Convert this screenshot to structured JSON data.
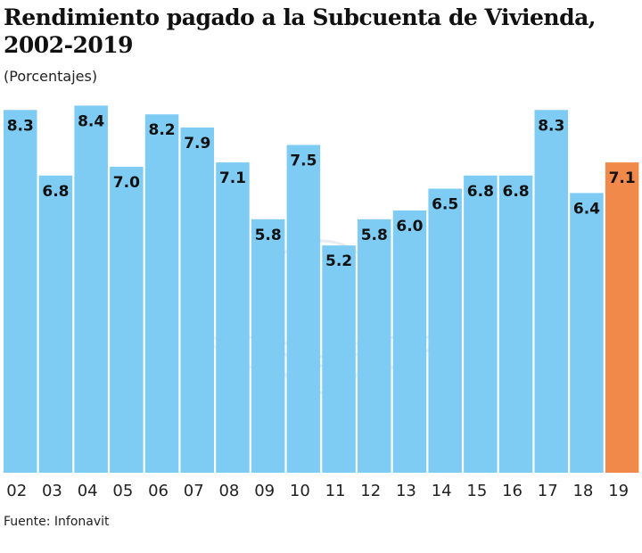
{
  "chart_data": {
    "type": "bar",
    "title": "Rendimiento pagado a la Subcuenta de Vivienda, 2002-2019",
    "subtitle": "(Porcentajes)",
    "categories": [
      "02",
      "03",
      "04",
      "05",
      "06",
      "07",
      "08",
      "09",
      "10",
      "11",
      "12",
      "13",
      "14",
      "15",
      "16",
      "17",
      "18",
      "19"
    ],
    "values": [
      8.3,
      6.8,
      8.4,
      7.0,
      8.2,
      7.9,
      7.1,
      5.8,
      7.5,
      5.2,
      5.8,
      6.0,
      6.5,
      6.8,
      6.8,
      8.3,
      6.4,
      7.1
    ],
    "value_labels": [
      "8.3",
      "6.8",
      "8.4",
      "7.0",
      "8.2",
      "7.9",
      "7.1",
      "5.8",
      "7.5",
      "5.2",
      "5.8",
      "6.0",
      "6.5",
      "6.8",
      "6.8",
      "8.3",
      "6.4",
      "7.1"
    ],
    "ylim": [
      0,
      8.4
    ],
    "grid": false,
    "colors": {
      "default": "#7ecbf3",
      "highlight": "#f0894a"
    },
    "highlight_category": "19",
    "source": "Fuente: Infonavit"
  }
}
